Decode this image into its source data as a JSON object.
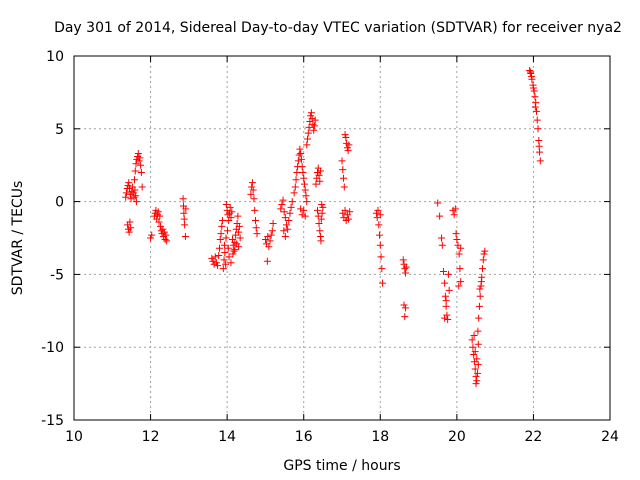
{
  "chart_data": {
    "type": "scatter",
    "title": "Day 301 of 2014, Sidereal Day-to-day VTEC variation (SDTVAR) for receiver nya2",
    "xlabel": "GPS time / hours",
    "ylabel": "SDTVAR / TECUs",
    "xlim": [
      10,
      24
    ],
    "ylim": [
      -15,
      10
    ],
    "xticks": [
      10,
      12,
      14,
      16,
      18,
      20,
      22,
      24
    ],
    "yticks": [
      -15,
      -10,
      -5,
      0,
      5,
      10
    ],
    "grid": true,
    "marker": "+",
    "series": [
      {
        "name": "SDTVAR",
        "color": "#ff0000",
        "points": [
          [
            11.35,
            0.3
          ],
          [
            11.37,
            0.6
          ],
          [
            11.39,
            0.9
          ],
          [
            11.41,
            1.1
          ],
          [
            11.43,
            1.3
          ],
          [
            11.45,
            0.9
          ],
          [
            11.47,
            0.5
          ],
          [
            11.49,
            0.2
          ],
          [
            11.51,
            0.7
          ],
          [
            11.53,
            1.0
          ],
          [
            11.55,
            0.6
          ],
          [
            11.57,
            0.3
          ],
          [
            11.59,
            0.8
          ],
          [
            11.61,
            0.4
          ],
          [
            11.63,
            0.0
          ],
          [
            11.4,
            -1.6
          ],
          [
            11.42,
            -1.9
          ],
          [
            11.44,
            -2.1
          ],
          [
            11.46,
            -1.4
          ],
          [
            11.48,
            -1.8
          ],
          [
            11.58,
            1.5
          ],
          [
            11.6,
            2.1
          ],
          [
            11.62,
            2.6
          ],
          [
            11.64,
            2.9
          ],
          [
            11.66,
            3.1
          ],
          [
            11.68,
            3.3
          ],
          [
            11.7,
            2.8
          ],
          [
            11.72,
            3.0
          ],
          [
            11.74,
            2.5
          ],
          [
            11.76,
            2.0
          ],
          [
            11.78,
            1.0
          ],
          [
            12.0,
            -2.5
          ],
          [
            12.03,
            -2.3
          ],
          [
            12.1,
            -1.0
          ],
          [
            12.12,
            -0.8
          ],
          [
            12.14,
            -0.6
          ],
          [
            12.16,
            -1.2
          ],
          [
            12.18,
            -0.9
          ],
          [
            12.2,
            -0.7
          ],
          [
            12.22,
            -1.4
          ],
          [
            12.24,
            -1.0
          ],
          [
            12.26,
            -1.7
          ],
          [
            12.28,
            -2.0
          ],
          [
            12.3,
            -2.2
          ],
          [
            12.32,
            -1.9
          ],
          [
            12.34,
            -2.4
          ],
          [
            12.36,
            -2.1
          ],
          [
            12.38,
            -2.6
          ],
          [
            12.4,
            -2.3
          ],
          [
            12.42,
            -2.7
          ],
          [
            12.85,
            0.2
          ],
          [
            12.86,
            -0.3
          ],
          [
            12.87,
            -0.8
          ],
          [
            12.88,
            -1.2
          ],
          [
            12.89,
            -1.6
          ],
          [
            12.91,
            -2.4
          ],
          [
            12.92,
            -0.5
          ],
          [
            13.6,
            -3.9
          ],
          [
            13.63,
            -4.1
          ],
          [
            13.66,
            -4.3
          ],
          [
            13.69,
            -3.8
          ],
          [
            13.72,
            -4.2
          ],
          [
            13.75,
            -4.4
          ],
          [
            13.78,
            -3.7
          ],
          [
            13.8,
            -3.2
          ],
          [
            13.82,
            -2.6
          ],
          [
            13.84,
            -2.2
          ],
          [
            13.86,
            -1.7
          ],
          [
            13.88,
            -1.3
          ],
          [
            13.9,
            -4.6
          ],
          [
            13.92,
            -4.0
          ],
          [
            13.94,
            -3.5
          ],
          [
            13.96,
            -4.3
          ],
          [
            13.98,
            -0.2
          ],
          [
            14.0,
            -0.6
          ],
          [
            14.02,
            -0.9
          ],
          [
            14.04,
            -1.3
          ],
          [
            14.06,
            -0.8
          ],
          [
            14.08,
            -0.4
          ],
          [
            14.1,
            -1.1
          ],
          [
            14.12,
            -0.7
          ],
          [
            14.14,
            -2.6
          ],
          [
            14.16,
            -3.0
          ],
          [
            14.18,
            -3.4
          ],
          [
            14.2,
            -2.8
          ],
          [
            14.22,
            -2.3
          ],
          [
            14.24,
            -1.9
          ],
          [
            14.26,
            -1.5
          ],
          [
            14.28,
            -1.0
          ],
          [
            14.3,
            -2.1
          ],
          [
            14.32,
            -1.7
          ],
          [
            14.34,
            -2.5
          ],
          [
            14.05,
            -3.8
          ],
          [
            14.1,
            -4.2
          ],
          [
            14.15,
            -3.6
          ],
          [
            14.2,
            -3.3
          ],
          [
            14.25,
            -2.9
          ],
          [
            14.3,
            -3.1
          ],
          [
            13.93,
            -3.0
          ],
          [
            13.97,
            -2.5
          ],
          [
            14.01,
            -2.0
          ],
          [
            14.03,
            -3.2
          ],
          [
            14.62,
            0.5
          ],
          [
            14.64,
            1.0
          ],
          [
            14.66,
            1.3
          ],
          [
            14.68,
            0.8
          ],
          [
            14.7,
            0.2
          ],
          [
            14.72,
            -0.6
          ],
          [
            14.74,
            -1.3
          ],
          [
            14.76,
            -1.8
          ],
          [
            14.78,
            -2.2
          ],
          [
            15.0,
            -2.6
          ],
          [
            15.03,
            -2.9
          ],
          [
            15.06,
            -2.4
          ],
          [
            15.09,
            -3.1
          ],
          [
            15.12,
            -2.7
          ],
          [
            15.15,
            -2.3
          ],
          [
            15.18,
            -2.0
          ],
          [
            15.05,
            -4.1
          ],
          [
            15.2,
            -1.5
          ],
          [
            15.4,
            -0.5
          ],
          [
            15.43,
            -0.2
          ],
          [
            15.46,
            0.1
          ],
          [
            15.49,
            -0.7
          ],
          [
            15.52,
            -1.1
          ],
          [
            15.55,
            -1.6
          ],
          [
            15.58,
            -1.9
          ],
          [
            15.61,
            -1.3
          ],
          [
            15.64,
            -0.8
          ],
          [
            15.67,
            -0.4
          ],
          [
            15.7,
            0.0
          ],
          [
            15.48,
            -2.0
          ],
          [
            15.52,
            -2.4
          ],
          [
            15.75,
            0.6
          ],
          [
            15.78,
            1.0
          ],
          [
            15.8,
            1.5
          ],
          [
            15.82,
            2.0
          ],
          [
            15.84,
            2.4
          ],
          [
            15.86,
            2.8
          ],
          [
            15.88,
            3.2
          ],
          [
            15.9,
            3.6
          ],
          [
            15.92,
            3.3
          ],
          [
            15.94,
            2.9
          ],
          [
            15.96,
            2.4
          ],
          [
            15.98,
            2.0
          ],
          [
            16.0,
            1.6
          ],
          [
            16.02,
            1.2
          ],
          [
            16.04,
            0.8
          ],
          [
            16.06,
            0.4
          ],
          [
            16.08,
            0.0
          ],
          [
            15.92,
            -0.5
          ],
          [
            15.96,
            -0.9
          ],
          [
            16.0,
            -0.6
          ],
          [
            16.04,
            -1.0
          ],
          [
            16.08,
            3.9
          ],
          [
            16.1,
            4.3
          ],
          [
            16.12,
            4.7
          ],
          [
            16.14,
            5.1
          ],
          [
            16.16,
            5.5
          ],
          [
            16.18,
            5.9
          ],
          [
            16.2,
            6.1
          ],
          [
            16.22,
            5.7
          ],
          [
            16.24,
            5.3
          ],
          [
            16.26,
            4.9
          ],
          [
            16.28,
            5.2
          ],
          [
            16.3,
            5.6
          ],
          [
            16.32,
            1.2
          ],
          [
            16.34,
            1.6
          ],
          [
            16.36,
            2.0
          ],
          [
            16.38,
            2.3
          ],
          [
            16.4,
            1.8
          ],
          [
            16.42,
            1.4
          ],
          [
            16.44,
            2.1
          ],
          [
            16.36,
            -0.6
          ],
          [
            16.38,
            -1.0
          ],
          [
            16.4,
            -1.5
          ],
          [
            16.42,
            -2.0
          ],
          [
            16.44,
            -2.4
          ],
          [
            16.46,
            -1.2
          ],
          [
            16.48,
            -0.8
          ],
          [
            16.5,
            -0.4
          ],
          [
            16.45,
            -2.7
          ],
          [
            16.47,
            -0.2
          ],
          [
            17.0,
            2.8
          ],
          [
            17.02,
            2.2
          ],
          [
            17.04,
            1.6
          ],
          [
            17.06,
            1.0
          ],
          [
            17.08,
            4.6
          ],
          [
            17.1,
            4.4
          ],
          [
            17.12,
            4.0
          ],
          [
            17.14,
            3.7
          ],
          [
            17.16,
            3.5
          ],
          [
            17.18,
            3.9
          ],
          [
            17.02,
            -0.8
          ],
          [
            17.05,
            -1.1
          ],
          [
            17.08,
            -0.6
          ],
          [
            17.11,
            -1.3
          ],
          [
            17.14,
            -0.9
          ],
          [
            17.17,
            -1.2
          ],
          [
            17.2,
            -0.7
          ],
          [
            17.9,
            -0.8
          ],
          [
            17.92,
            -1.1
          ],
          [
            17.94,
            -0.6
          ],
          [
            17.96,
            -1.6
          ],
          [
            17.98,
            -2.3
          ],
          [
            18.0,
            -3.0
          ],
          [
            18.02,
            -3.8
          ],
          [
            18.04,
            -4.6
          ],
          [
            18.06,
            -5.6
          ],
          [
            18.0,
            -0.9
          ],
          [
            18.6,
            -4.0
          ],
          [
            18.62,
            -4.3
          ],
          [
            18.64,
            -4.6
          ],
          [
            18.66,
            -4.9
          ],
          [
            18.68,
            -4.5
          ],
          [
            18.62,
            -7.1
          ],
          [
            18.66,
            -7.3
          ],
          [
            18.64,
            -7.9
          ],
          [
            19.5,
            -0.1
          ],
          [
            19.55,
            -1.0
          ],
          [
            19.6,
            -2.5
          ],
          [
            19.62,
            -3.0
          ],
          [
            19.65,
            -4.8
          ],
          [
            19.68,
            -5.6
          ],
          [
            19.7,
            -6.5
          ],
          [
            19.72,
            -7.2
          ],
          [
            19.74,
            -7.8
          ],
          [
            19.76,
            -8.1
          ],
          [
            19.78,
            -5.0
          ],
          [
            19.8,
            -6.1
          ],
          [
            19.68,
            -8.0
          ],
          [
            19.72,
            -6.8
          ],
          [
            19.9,
            -0.6
          ],
          [
            19.93,
            -0.9
          ],
          [
            19.96,
            -0.5
          ],
          [
            19.98,
            -2.2
          ],
          [
            20.0,
            -2.6
          ],
          [
            20.03,
            -3.0
          ],
          [
            20.06,
            -3.6
          ],
          [
            20.08,
            -4.6
          ],
          [
            20.1,
            -5.5
          ],
          [
            20.05,
            -5.8
          ],
          [
            20.1,
            -3.2
          ],
          [
            20.4,
            -9.5
          ],
          [
            20.42,
            -10.0
          ],
          [
            20.44,
            -10.5
          ],
          [
            20.46,
            -11.0
          ],
          [
            20.48,
            -11.5
          ],
          [
            20.5,
            -12.0
          ],
          [
            20.52,
            -12.3
          ],
          [
            20.54,
            -11.8
          ],
          [
            20.56,
            -11.2
          ],
          [
            20.45,
            -9.2
          ],
          [
            20.48,
            -10.3
          ],
          [
            20.52,
            -10.8
          ],
          [
            20.56,
            -9.8
          ],
          [
            20.5,
            -12.5
          ],
          [
            20.55,
            -8.9
          ],
          [
            20.57,
            -8.0
          ],
          [
            20.59,
            -7.2
          ],
          [
            20.61,
            -6.5
          ],
          [
            20.63,
            -5.8
          ],
          [
            20.65,
            -5.2
          ],
          [
            20.67,
            -4.6
          ],
          [
            20.69,
            -4.0
          ],
          [
            20.71,
            -3.6
          ],
          [
            20.73,
            -3.4
          ],
          [
            20.6,
            -6.0
          ],
          [
            20.64,
            -5.5
          ],
          [
            21.9,
            9.0
          ],
          [
            21.93,
            8.8
          ],
          [
            21.96,
            8.4
          ],
          [
            21.99,
            8.0
          ],
          [
            22.02,
            7.6
          ],
          [
            22.04,
            7.2
          ],
          [
            22.06,
            6.8
          ],
          [
            22.08,
            6.2
          ],
          [
            22.1,
            5.6
          ],
          [
            22.12,
            5.0
          ],
          [
            22.14,
            4.2
          ],
          [
            22.16,
            3.4
          ],
          [
            22.18,
            2.8
          ],
          [
            21.92,
            8.9
          ],
          [
            21.95,
            8.6
          ],
          [
            22.0,
            7.8
          ],
          [
            22.05,
            6.5
          ],
          [
            22.15,
            3.8
          ]
        ]
      }
    ]
  }
}
